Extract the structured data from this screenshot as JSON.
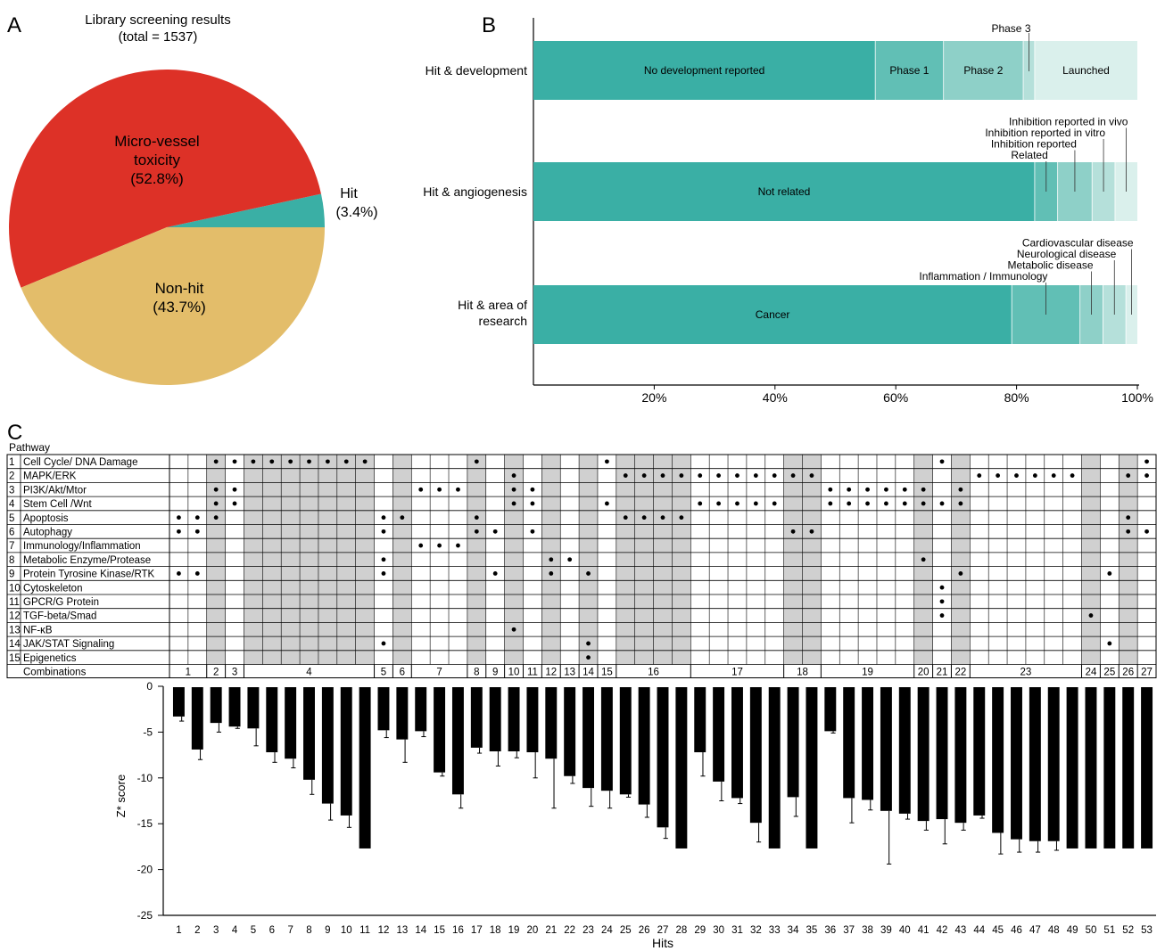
{
  "panels": {
    "a": "A",
    "b": "B",
    "c": "C"
  },
  "chart_data": [
    {
      "type": "pie",
      "title": "Library screening results",
      "subtitle": "(total = 1537)",
      "slices": [
        {
          "label": "Hit",
          "value": 3.4,
          "pct_label": "(3.4%)",
          "color": "#3aafa5"
        },
        {
          "label": "Micro-vessel toxicity",
          "label_lines": [
            "Micro-vessel",
            "toxicity"
          ],
          "value": 52.8,
          "pct_label": "(52.8%)",
          "color": "#dd3127"
        },
        {
          "label": "Non-hit",
          "value": 43.7,
          "pct_label": "(43.7%)",
          "color": "#e3bd6a"
        }
      ]
    },
    {
      "type": "bar",
      "orientation": "horizontal",
      "stacked": true,
      "xlim": [
        0,
        100
      ],
      "xticks": [
        "20%",
        "40%",
        "60%",
        "80%",
        "100%"
      ],
      "xtick_values": [
        20,
        40,
        60,
        80,
        100
      ],
      "bars": [
        {
          "label": "Hit & development",
          "label_lines": [
            "Hit & development"
          ],
          "segments": [
            {
              "label": "No development reported",
              "value": 56.6,
              "color": "#3aafa5",
              "inside": true
            },
            {
              "label": "Phase 1",
              "value": 11.3,
              "color": "#61bfb5",
              "inside": true
            },
            {
              "label": "Phase 2",
              "value": 13.2,
              "color": "#8ed0c8",
              "inside": true
            },
            {
              "label": "Phase 3",
              "value": 1.9,
              "color": "#b5e0da",
              "inside": false
            },
            {
              "label": "Launched",
              "value": 17.0,
              "color": "#daf0ec",
              "inside": true
            }
          ]
        },
        {
          "label": "Hit & angiogenesis",
          "label_lines": [
            "Hit & angiogenesis"
          ],
          "segments": [
            {
              "label": "Not related",
              "value": 83.0,
              "color": "#3aafa5",
              "inside": true
            },
            {
              "label": "Related",
              "value": 3.8,
              "color": "#61bfb5",
              "inside": false
            },
            {
              "label": "Inhibition reported",
              "value": 5.7,
              "color": "#8ed0c8",
              "inside": false
            },
            {
              "label": "Inhibition reported in vitro",
              "value": 3.8,
              "color": "#b5e0da",
              "inside": false
            },
            {
              "label": "Inhibition reported in vivo",
              "value": 3.7,
              "color": "#daf0ec",
              "inside": false
            }
          ]
        },
        {
          "label": "Hit & area of research",
          "label_lines": [
            "Hit & area of",
            "research"
          ],
          "segments": [
            {
              "label": "Cancer",
              "value": 79.2,
              "color": "#3aafa5",
              "inside": true
            },
            {
              "label": "Inflammation / Immunology",
              "value": 11.3,
              "color": "#61bfb5",
              "inside": false
            },
            {
              "label": "Metabolic disease",
              "value": 3.8,
              "color": "#8ed0c8",
              "inside": false
            },
            {
              "label": "Neurological disease",
              "value": 3.8,
              "color": "#b5e0da",
              "inside": false
            },
            {
              "label": "Cardiovascular disease",
              "value": 1.9,
              "color": "#daf0ec",
              "inside": false
            }
          ]
        }
      ]
    },
    {
      "type": "table",
      "title": "Pathway",
      "rows": [
        {
          "num": "1",
          "label": "Cell Cycle/ DNA Damage"
        },
        {
          "num": "2",
          "label": "MAPK/ERK"
        },
        {
          "num": "3",
          "label": "PI3K/Akt/Mtor"
        },
        {
          "num": "4",
          "label": "Stem Cell /Wnt"
        },
        {
          "num": "5",
          "label": "Apoptosis"
        },
        {
          "num": "6",
          "label": "Autophagy"
        },
        {
          "num": "7",
          "label": "Immunology/Inflammation"
        },
        {
          "num": "8",
          "label": "Metabolic Enzyme/Protease"
        },
        {
          "num": "9",
          "label": "Protein Tyrosine Kinase/RTK"
        },
        {
          "num": "10",
          "label": "Cytoskeleton"
        },
        {
          "num": "11",
          "label": "GPCR/G Protein"
        },
        {
          "num": "12",
          "label": "TGF-beta/Smad"
        },
        {
          "num": "13",
          "label": "NF-κB"
        },
        {
          "num": "14",
          "label": "JAK/STAT Signaling"
        },
        {
          "num": "15",
          "label": "Epigenetics"
        }
      ],
      "combinations_label": "Combinations",
      "combinations": [
        {
          "label": "1",
          "hits": [
            1,
            2
          ],
          "pathways": [
            5,
            6,
            9
          ]
        },
        {
          "label": "2",
          "hits": [
            3
          ],
          "pathways": [
            1,
            3,
            4,
            5
          ]
        },
        {
          "label": "3",
          "hits": [
            4
          ],
          "pathways": [
            1,
            3,
            4
          ]
        },
        {
          "label": "4",
          "hits": [
            5,
            6,
            7,
            8,
            9,
            10,
            11
          ],
          "pathways": [
            1
          ]
        },
        {
          "label": "5",
          "hits": [
            12
          ],
          "pathways": [
            5,
            6,
            8,
            9,
            14
          ]
        },
        {
          "label": "6",
          "hits": [
            13
          ],
          "pathways": [
            5
          ]
        },
        {
          "label": "7",
          "hits": [
            14,
            15,
            16
          ],
          "pathways": [
            3,
            7
          ]
        },
        {
          "label": "8",
          "hits": [
            17
          ],
          "pathways": [
            1,
            5,
            6
          ]
        },
        {
          "label": "9",
          "hits": [
            18
          ],
          "pathways": [
            6,
            9
          ]
        },
        {
          "label": "10",
          "hits": [
            19
          ],
          "pathways": [
            2,
            3,
            4,
            13
          ]
        },
        {
          "label": "11",
          "hits": [
            20
          ],
          "pathways": [
            3,
            4,
            6
          ]
        },
        {
          "label": "12",
          "hits": [
            21
          ],
          "pathways": [
            8,
            9
          ]
        },
        {
          "label": "13",
          "hits": [
            22
          ],
          "pathways": [
            8
          ]
        },
        {
          "label": "14",
          "hits": [
            23
          ],
          "pathways": [
            9,
            14,
            15
          ]
        },
        {
          "label": "15",
          "hits": [
            24
          ],
          "pathways": [
            1,
            4
          ]
        },
        {
          "label": "16",
          "hits": [
            25,
            26,
            27,
            28
          ],
          "pathways": [
            2,
            5
          ]
        },
        {
          "label": "17",
          "hits": [
            29,
            30,
            31,
            32,
            33
          ],
          "pathways": [
            2,
            4
          ]
        },
        {
          "label": "18",
          "hits": [
            34,
            35
          ],
          "pathways": [
            2,
            6
          ]
        },
        {
          "label": "19",
          "hits": [
            36,
            37,
            38,
            39,
            40
          ],
          "pathways": [
            3,
            4
          ]
        },
        {
          "label": "20",
          "hits": [
            41
          ],
          "pathways": [
            3,
            4,
            8
          ]
        },
        {
          "label": "21",
          "hits": [
            42
          ],
          "pathways": [
            1,
            4,
            10,
            11,
            12
          ]
        },
        {
          "label": "22",
          "hits": [
            43
          ],
          "pathways": [
            3,
            4,
            9
          ]
        },
        {
          "label": "23",
          "hits": [
            44,
            45,
            46,
            47,
            48,
            49
          ],
          "pathways": [
            2
          ]
        },
        {
          "label": "24",
          "hits": [
            50
          ],
          "pathways": [
            12
          ]
        },
        {
          "label": "25",
          "hits": [
            51
          ],
          "pathways": [
            9,
            14
          ]
        },
        {
          "label": "26",
          "hits": [
            52
          ],
          "pathways": [
            2,
            5,
            6
          ]
        },
        {
          "label": "27",
          "hits": [
            53
          ],
          "pathways": [
            1,
            2,
            6
          ]
        }
      ]
    },
    {
      "type": "bar",
      "xlabel": "Hits",
      "ylabel": "Z* score",
      "ylim": [
        -25,
        0
      ],
      "yticks": [
        0,
        -5,
        -10,
        -15,
        -20,
        -25
      ],
      "categories": [
        "1",
        "2",
        "3",
        "4",
        "5",
        "6",
        "7",
        "8",
        "9",
        "10",
        "11",
        "12",
        "13",
        "14",
        "15",
        "16",
        "17",
        "18",
        "19",
        "20",
        "21",
        "22",
        "23",
        "24",
        "25",
        "26",
        "27",
        "28",
        "29",
        "30",
        "31",
        "32",
        "33",
        "34",
        "35",
        "36",
        "37",
        "38",
        "39",
        "40",
        "41",
        "42",
        "43",
        "44",
        "45",
        "46",
        "47",
        "48",
        "49",
        "50",
        "51",
        "52",
        "53"
      ],
      "values": [
        -3.3,
        -6.9,
        -4.0,
        -4.4,
        -4.6,
        -7.2,
        -7.9,
        -10.2,
        -12.8,
        -14.1,
        -17.7,
        -4.8,
        -5.8,
        -4.9,
        -9.4,
        -11.8,
        -6.7,
        -7.1,
        -7.1,
        -7.2,
        -7.9,
        -9.8,
        -11.1,
        -11.4,
        -11.8,
        -12.9,
        -15.4,
        -17.7,
        -7.2,
        -10.4,
        -12.2,
        -14.9,
        -17.7,
        -12.1,
        -17.7,
        -4.9,
        -12.2,
        -12.4,
        -13.6,
        -13.9,
        -14.7,
        -14.5,
        -14.9,
        -14.1,
        -16.0,
        -16.7,
        -16.9,
        -16.9,
        -17.7,
        -17.7,
        -17.7,
        -17.7,
        -17.7
      ],
      "errors": [
        0.5,
        1.1,
        1.0,
        0.2,
        1.9,
        1.1,
        1.0,
        1.6,
        1.8,
        1.3,
        0,
        0.8,
        2.5,
        0.6,
        0.4,
        1.5,
        0.6,
        1.6,
        0.7,
        2.8,
        5.4,
        0.8,
        2.0,
        1.9,
        0.3,
        1.4,
        1.2,
        0,
        2.6,
        2.1,
        0.6,
        2.1,
        0,
        2.1,
        0,
        0.2,
        2.7,
        1.1,
        5.8,
        0.6,
        1.0,
        2.7,
        0.8,
        0.3,
        2.3,
        1.4,
        1.2,
        1.0,
        0,
        0,
        0,
        0,
        0
      ]
    }
  ]
}
